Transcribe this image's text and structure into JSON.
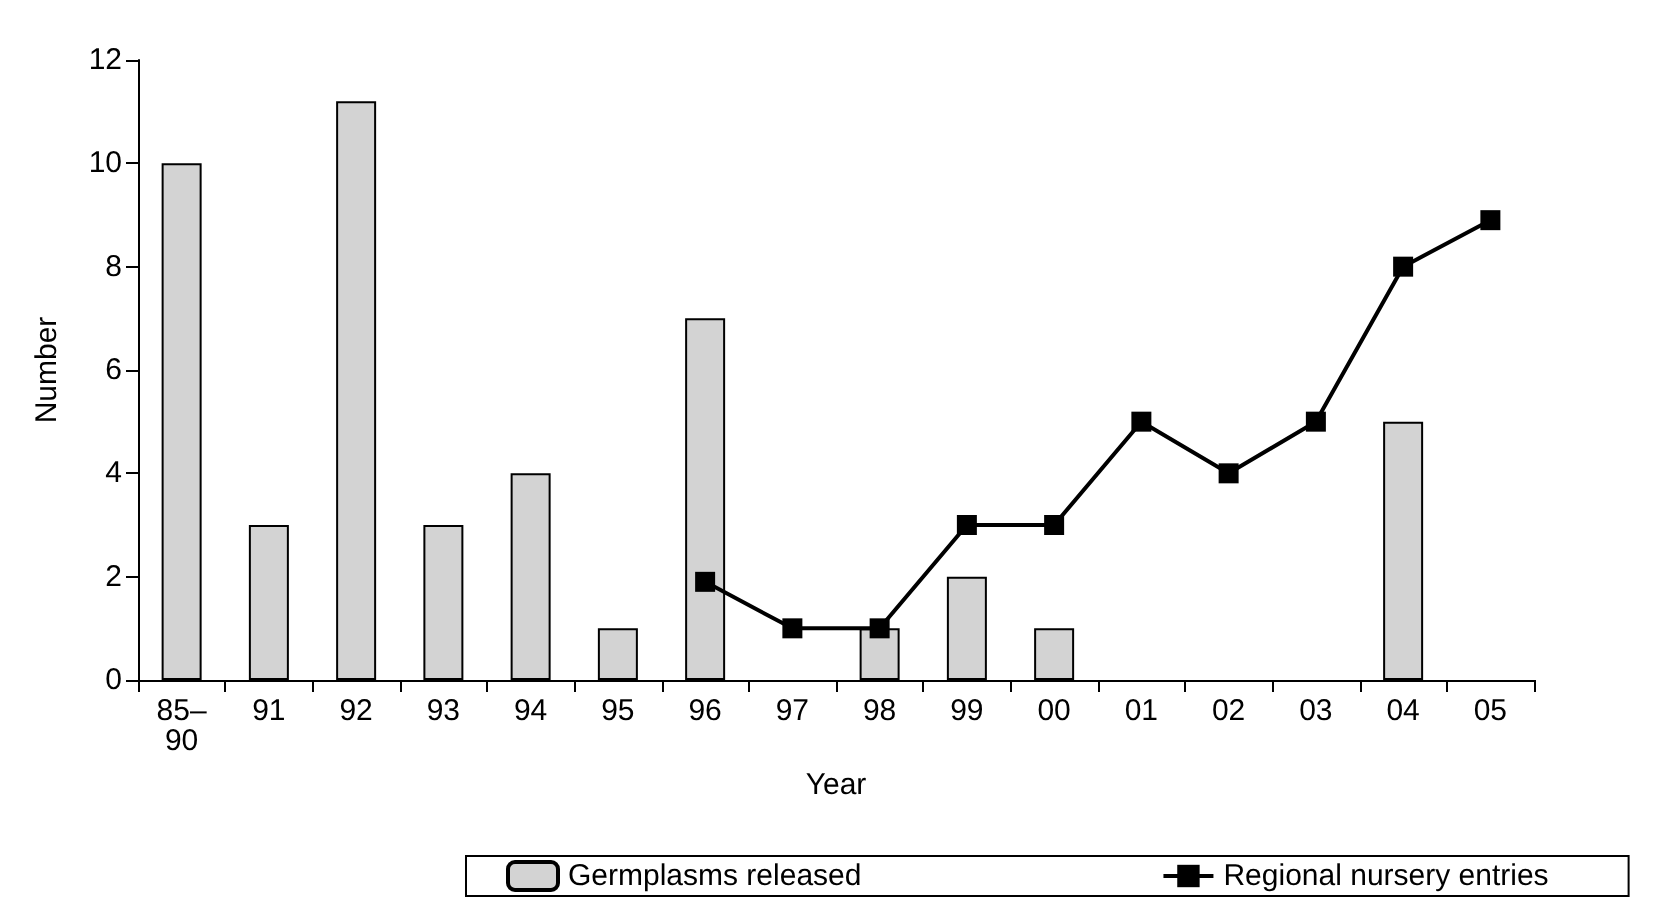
{
  "chart_data": {
    "type": "bar",
    "xlabel": "Year",
    "ylabel": "Number",
    "categories": [
      "85–90",
      "91",
      "92",
      "93",
      "94",
      "95",
      "96",
      "97",
      "98",
      "99",
      "00",
      "01",
      "02",
      "03",
      "04",
      "05"
    ],
    "series": [
      {
        "name": "Germplasms released",
        "color": "#d3d3d3",
        "values": [
          10,
          3,
          11.2,
          3,
          4,
          1,
          7,
          null,
          1,
          2,
          1,
          null,
          null,
          null,
          5,
          null
        ]
      },
      {
        "name": "Regional nursery entries",
        "type": "line",
        "color": "#000000",
        "marker": "square",
        "values": [
          null,
          null,
          null,
          null,
          null,
          null,
          1.9,
          1,
          1,
          3,
          3,
          5,
          4,
          5,
          8,
          8.9
        ]
      }
    ],
    "ylim": [
      0,
      12
    ],
    "yticks": [
      0,
      2,
      4,
      6,
      8,
      10,
      12
    ],
    "grid": false,
    "legend": "bottom"
  }
}
